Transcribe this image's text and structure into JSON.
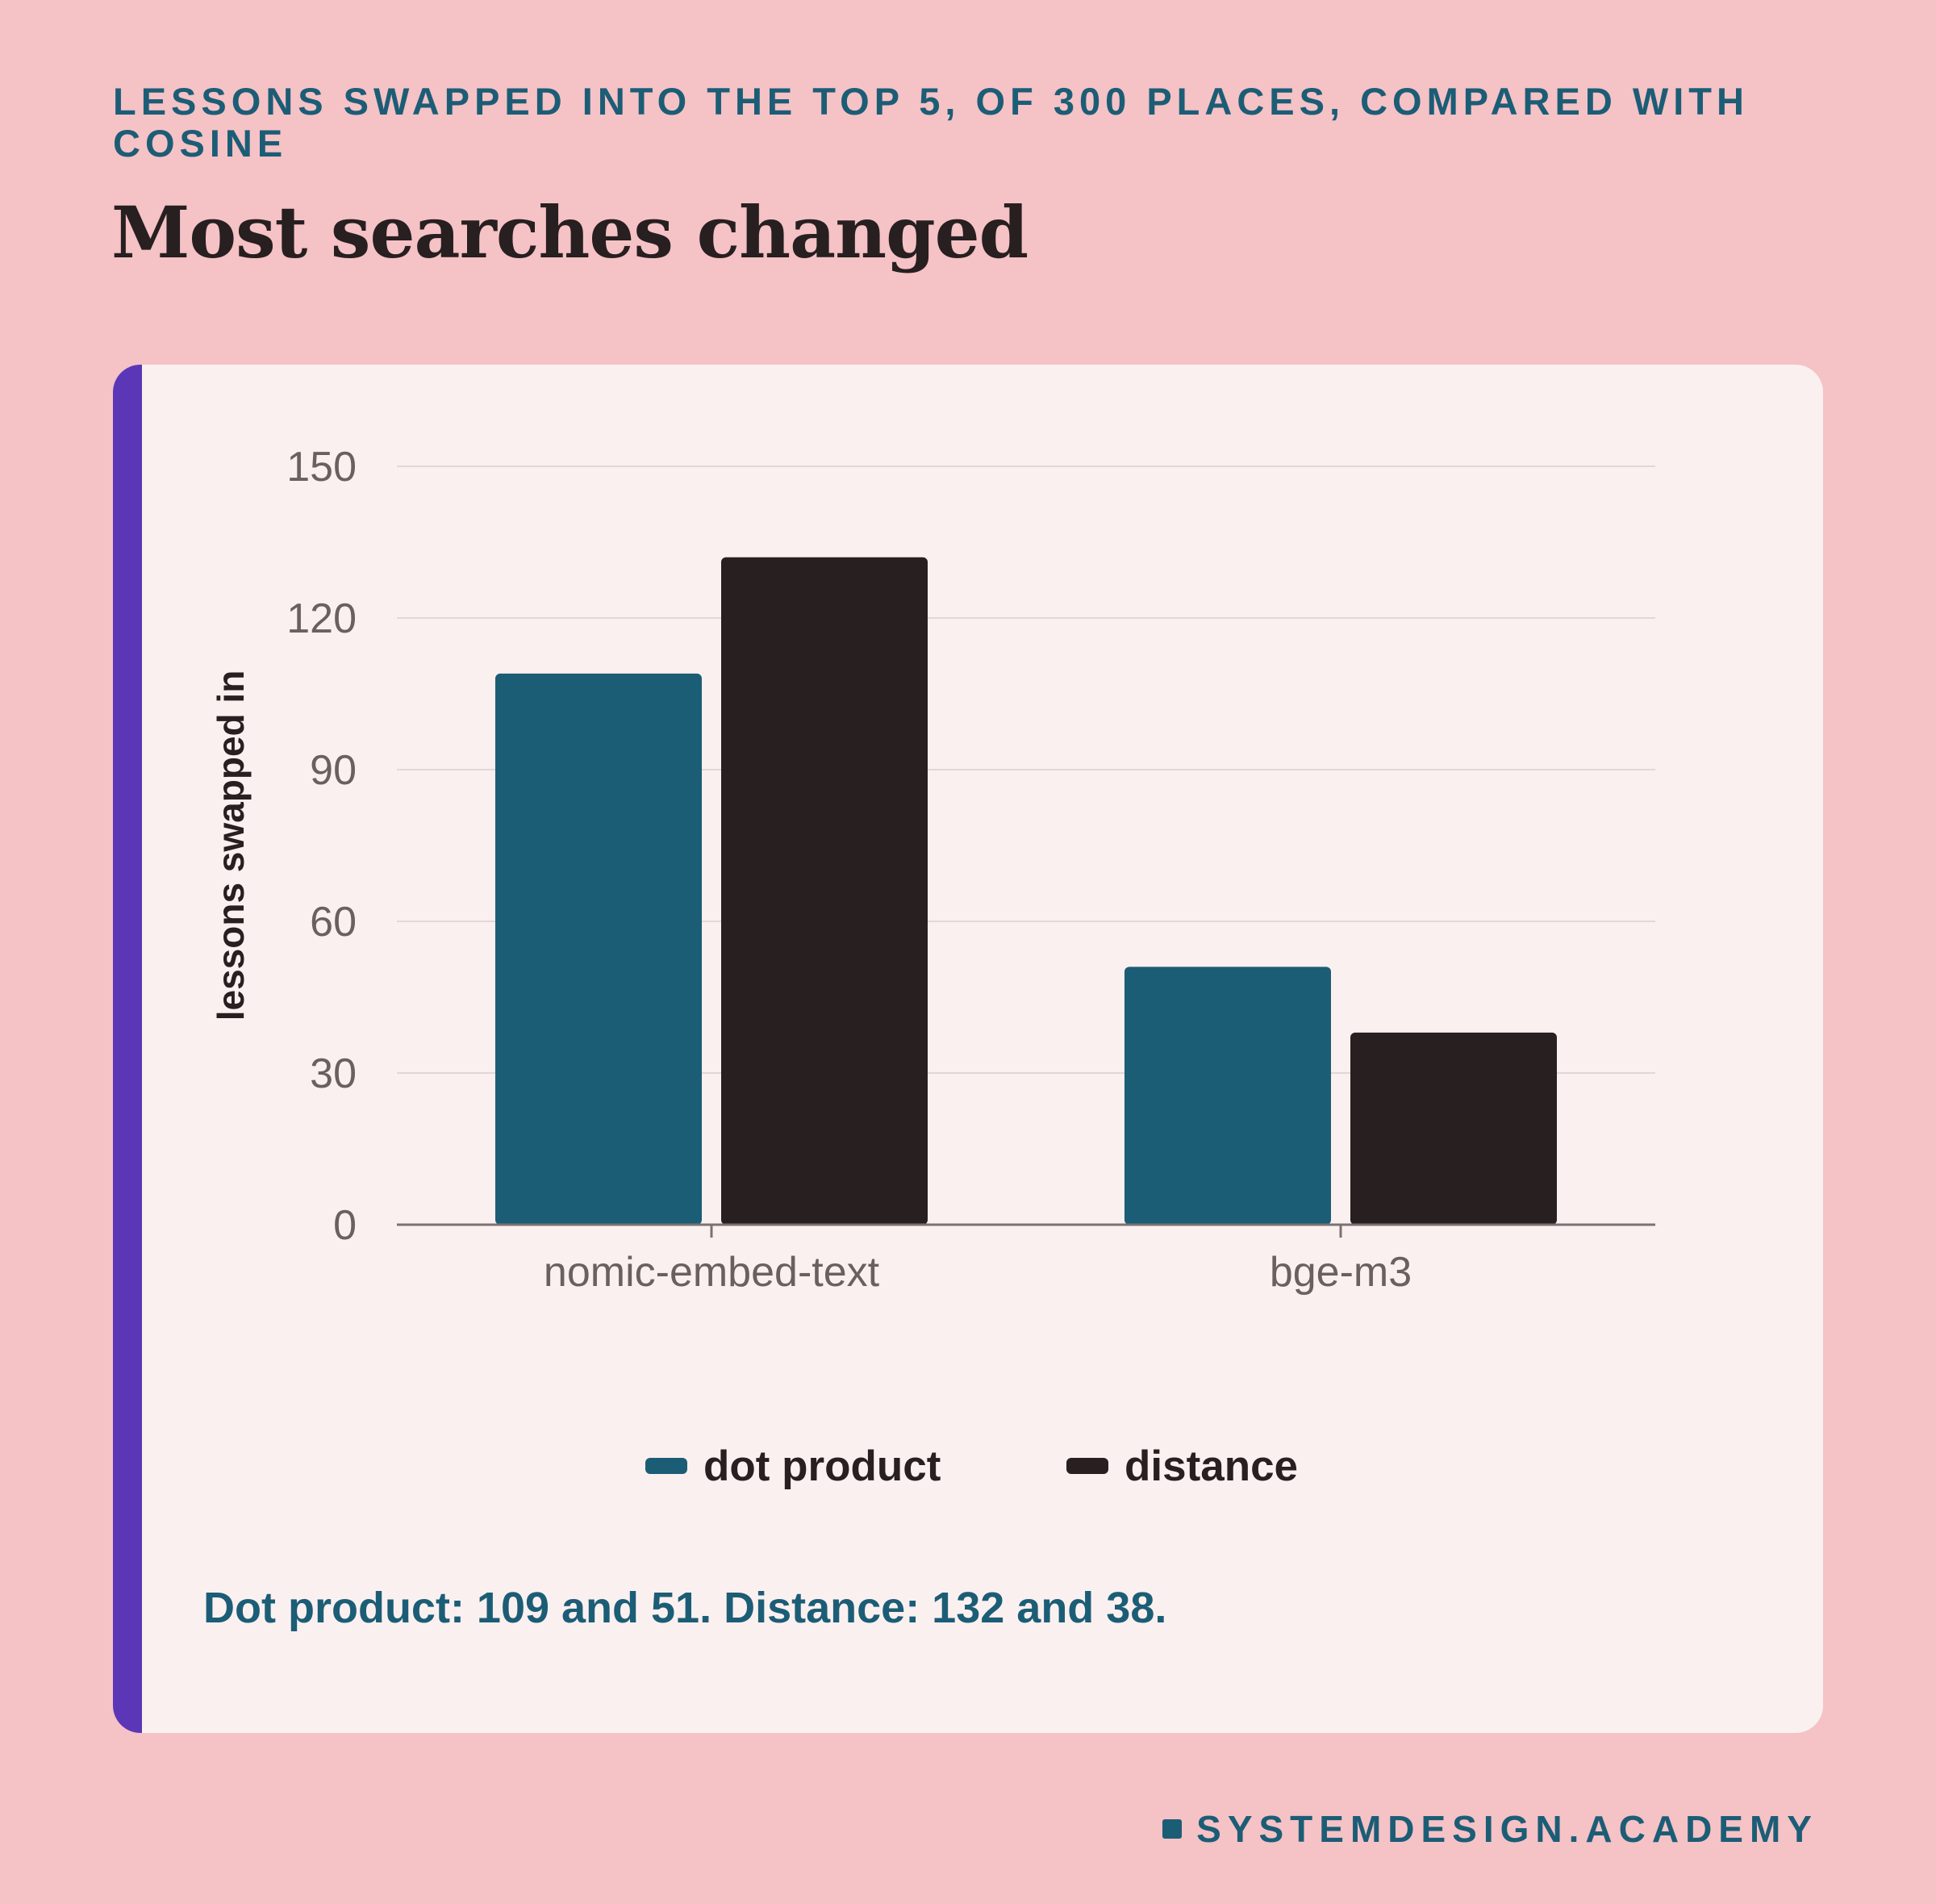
{
  "header": {
    "kicker": "LESSONS SWAPPED INTO THE TOP 5, OF 300 PLACES, COMPARED WITH COSINE",
    "headline": "Most searches changed"
  },
  "chart_data": {
    "type": "bar",
    "categories": [
      "nomic-embed-text",
      "bge-m3"
    ],
    "series": [
      {
        "name": "dot product",
        "values": [
          109,
          51
        ],
        "color": "#1c5d76"
      },
      {
        "name": "distance",
        "values": [
          132,
          38
        ],
        "color": "#271f20"
      }
    ],
    "ylabel": "lessons swapped in",
    "ylim": [
      0,
      150
    ],
    "yticks": [
      "0",
      "30",
      "60",
      "90",
      "120",
      "150"
    ],
    "grid": true,
    "legend": "bottom"
  },
  "note": "Dot product: 109 and 51. Distance: 132 and 38.",
  "brand": "SYSTEMDESIGN.ACADEMY",
  "colors": {
    "background": "#f5c2c6",
    "card": "#fbf0f0",
    "accent": "#5b37b7",
    "teal": "#1c5d76",
    "dark": "#271f20"
  }
}
